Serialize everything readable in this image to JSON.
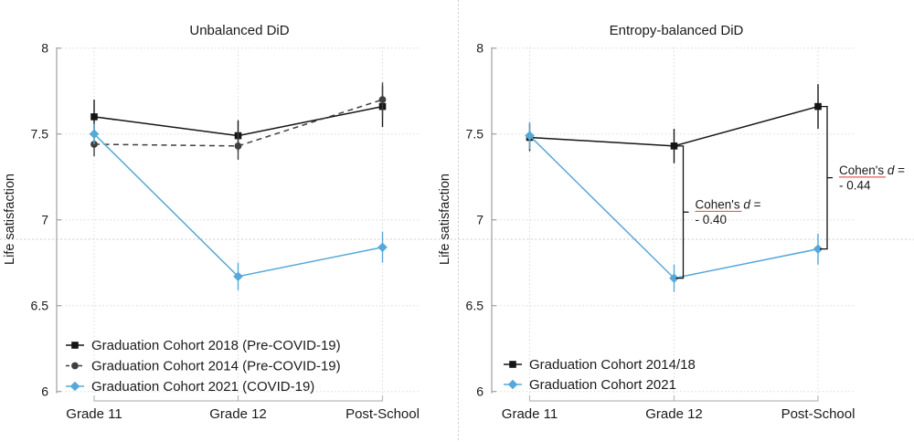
{
  "figure": {
    "background": "#ffffff",
    "guides": {
      "horizontal_guide_y": 262,
      "vertical_guide_x": 501.5,
      "color": "#c9c9c9"
    }
  },
  "colors": {
    "black_series": "#151515",
    "gray_series": "#3f3f3f",
    "blue_series": "#56a8d8",
    "gridline": "#d9d9d9",
    "axis": "#a6a6a6",
    "annotation_underline": "#e0443e"
  },
  "chart_data": [
    {
      "type": "line",
      "title": "Unbalanced DiD",
      "xlabel": "",
      "ylabel": "Life satisfaction",
      "categories": [
        "Grade 11",
        "Grade 12",
        "Post-School"
      ],
      "ytick_labels": [
        "8",
        "7.5",
        "7",
        "6.5",
        "6"
      ],
      "yticks": [
        8,
        7.5,
        7,
        6.5,
        6
      ],
      "ylim": [
        6,
        8
      ],
      "grid": "dotted",
      "legend_position": "inside-bottom-left",
      "series": [
        {
          "name": "Graduation Cohort 2018 (Pre-COVID-19)",
          "values": [
            7.6,
            7.49,
            7.66
          ],
          "ci": [
            0.1,
            0.09,
            0.12
          ],
          "color": "#151515",
          "marker": "square",
          "line": "solid"
        },
        {
          "name": "Graduation Cohort 2014 (Pre-COVID-19)",
          "values": [
            7.44,
            7.43,
            7.7
          ],
          "ci": [
            0.07,
            0.08,
            0.1
          ],
          "color": "#3f3f3f",
          "marker": "circle",
          "line": "dashed"
        },
        {
          "name": "Graduation Cohort 2021 (COVID-19)",
          "values": [
            7.5,
            6.67,
            6.84
          ],
          "ci": [
            0.06,
            0.08,
            0.09
          ],
          "color": "#56a8d8",
          "marker": "diamond",
          "line": "solid"
        }
      ],
      "annotations": []
    },
    {
      "type": "line",
      "title": "Entropy-balanced DiD",
      "xlabel": "",
      "ylabel": "Life satisfaction",
      "categories": [
        "Grade 11",
        "Grade 12",
        "Post-School"
      ],
      "ytick_labels": [
        "8",
        "7.5",
        "7",
        "6.5",
        "6"
      ],
      "yticks": [
        8,
        7.5,
        7,
        6.5,
        6
      ],
      "ylim": [
        6,
        8
      ],
      "grid": "dotted",
      "legend_position": "inside-bottom-left",
      "series": [
        {
          "name": "Graduation Cohort 2014/18",
          "values": [
            7.48,
            7.43,
            7.66
          ],
          "ci": [
            0.08,
            0.1,
            0.13
          ],
          "color": "#151515",
          "marker": "square",
          "line": "solid"
        },
        {
          "name": "Graduation Cohort 2021",
          "values": [
            7.49,
            6.66,
            6.83
          ],
          "ci": [
            0.08,
            0.08,
            0.09
          ],
          "color": "#56a8d8",
          "marker": "diamond",
          "line": "solid"
        }
      ],
      "annotations": [
        {
          "at_category": "Grade 12",
          "category_index": 1,
          "from_value": 7.43,
          "to_value": 6.66,
          "text_pre": "Cohen's ",
          "text_italic": "d",
          "text_post": " =",
          "value_text": "- 0.40",
          "underline_word": "Cohen's"
        },
        {
          "at_category": "Post-School",
          "category_index": 2,
          "from_value": 7.66,
          "to_value": 6.83,
          "text_pre": "Cohen's ",
          "text_italic": "d",
          "text_post": " =",
          "value_text": "- 0.44",
          "underline_word": "Cohen's"
        }
      ]
    }
  ]
}
